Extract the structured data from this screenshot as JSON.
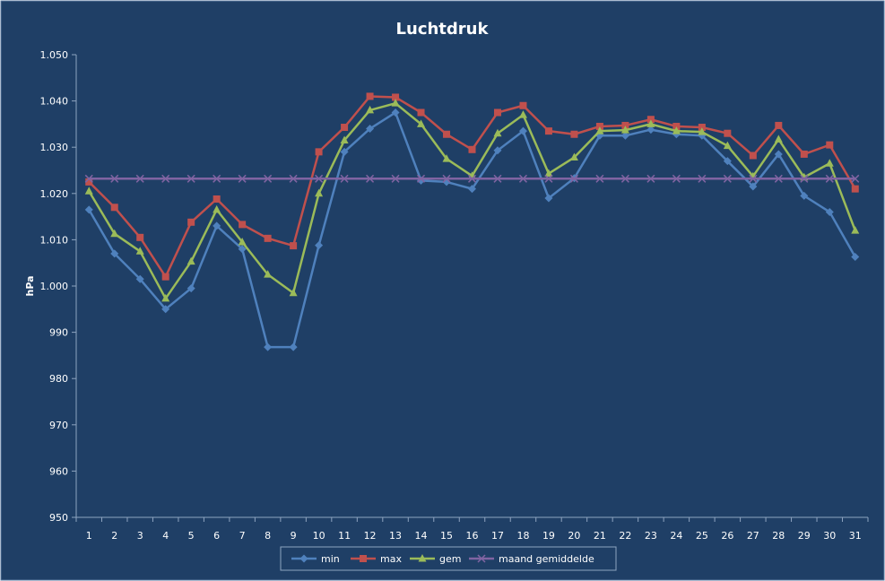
{
  "chart_data": {
    "type": "line",
    "title": "Luchtdruk",
    "xlabel": "",
    "ylabel": "hPa",
    "ylim": [
      950,
      1050
    ],
    "y_tick_labels": [
      "950",
      "960",
      "970",
      "980",
      "990",
      "1.000",
      "1.010",
      "1.020",
      "1.030",
      "1.040",
      "1.050"
    ],
    "categories": [
      "1",
      "2",
      "3",
      "4",
      "5",
      "6",
      "7",
      "8",
      "9",
      "10",
      "11",
      "12",
      "13",
      "14",
      "15",
      "16",
      "17",
      "18",
      "19",
      "20",
      "21",
      "22",
      "23",
      "24",
      "25",
      "26",
      "27",
      "28",
      "29",
      "30",
      "31"
    ],
    "grid": false,
    "legend_position": "bottom",
    "background": "#1f3f66",
    "series": [
      {
        "name": "min",
        "color": "#4f81bd",
        "marker": "diamond",
        "values": [
          1016.5,
          1007,
          1001.5,
          995,
          999.5,
          1013,
          1008,
          986.8,
          986.8,
          1008.8,
          1029,
          1034,
          1037.5,
          1022.8,
          1022.5,
          1021,
          1029.3,
          1033.5,
          1019,
          1023.3,
          1032.5,
          1032.5,
          1033.8,
          1032.8,
          1032.5,
          1027,
          1021.5,
          1028.5,
          1019.5,
          1016,
          1006.3
        ]
      },
      {
        "name": "max",
        "color": "#c0504d",
        "marker": "square",
        "values": [
          1022.5,
          1017,
          1010.5,
          1002,
          1013.8,
          1018.8,
          1013.3,
          1010.3,
          1008.7,
          1029,
          1034.3,
          1041,
          1040.8,
          1037.5,
          1032.8,
          1029.5,
          1037.5,
          1039,
          1033.5,
          1032.8,
          1034.5,
          1034.7,
          1036,
          1034.5,
          1034.3,
          1033,
          1028.2,
          1034.7,
          1028.5,
          1030.5,
          1021
        ]
      },
      {
        "name": "gem",
        "color": "#9bbb59",
        "marker": "triangle",
        "values": [
          1020.5,
          1011.3,
          1007.5,
          997.3,
          1005.3,
          1016.5,
          1009.5,
          1002.5,
          998.5,
          1020,
          1031.5,
          1038,
          1039.5,
          1035,
          1027.5,
          1023.8,
          1033,
          1037,
          1024.3,
          1027.8,
          1033.5,
          1033.7,
          1035,
          1033.5,
          1033.3,
          1030.3,
          1023.7,
          1031.7,
          1023.5,
          1026.5,
          1012
        ]
      },
      {
        "name": "maand gemiddelde",
        "color": "#8064a2",
        "marker": "x",
        "values": [
          1023.2,
          1023.2,
          1023.2,
          1023.2,
          1023.2,
          1023.2,
          1023.2,
          1023.2,
          1023.2,
          1023.2,
          1023.2,
          1023.2,
          1023.2,
          1023.2,
          1023.2,
          1023.2,
          1023.2,
          1023.2,
          1023.2,
          1023.2,
          1023.2,
          1023.2,
          1023.2,
          1023.2,
          1023.2,
          1023.2,
          1023.2,
          1023.2,
          1023.2,
          1023.2,
          1023.2
        ]
      }
    ]
  }
}
